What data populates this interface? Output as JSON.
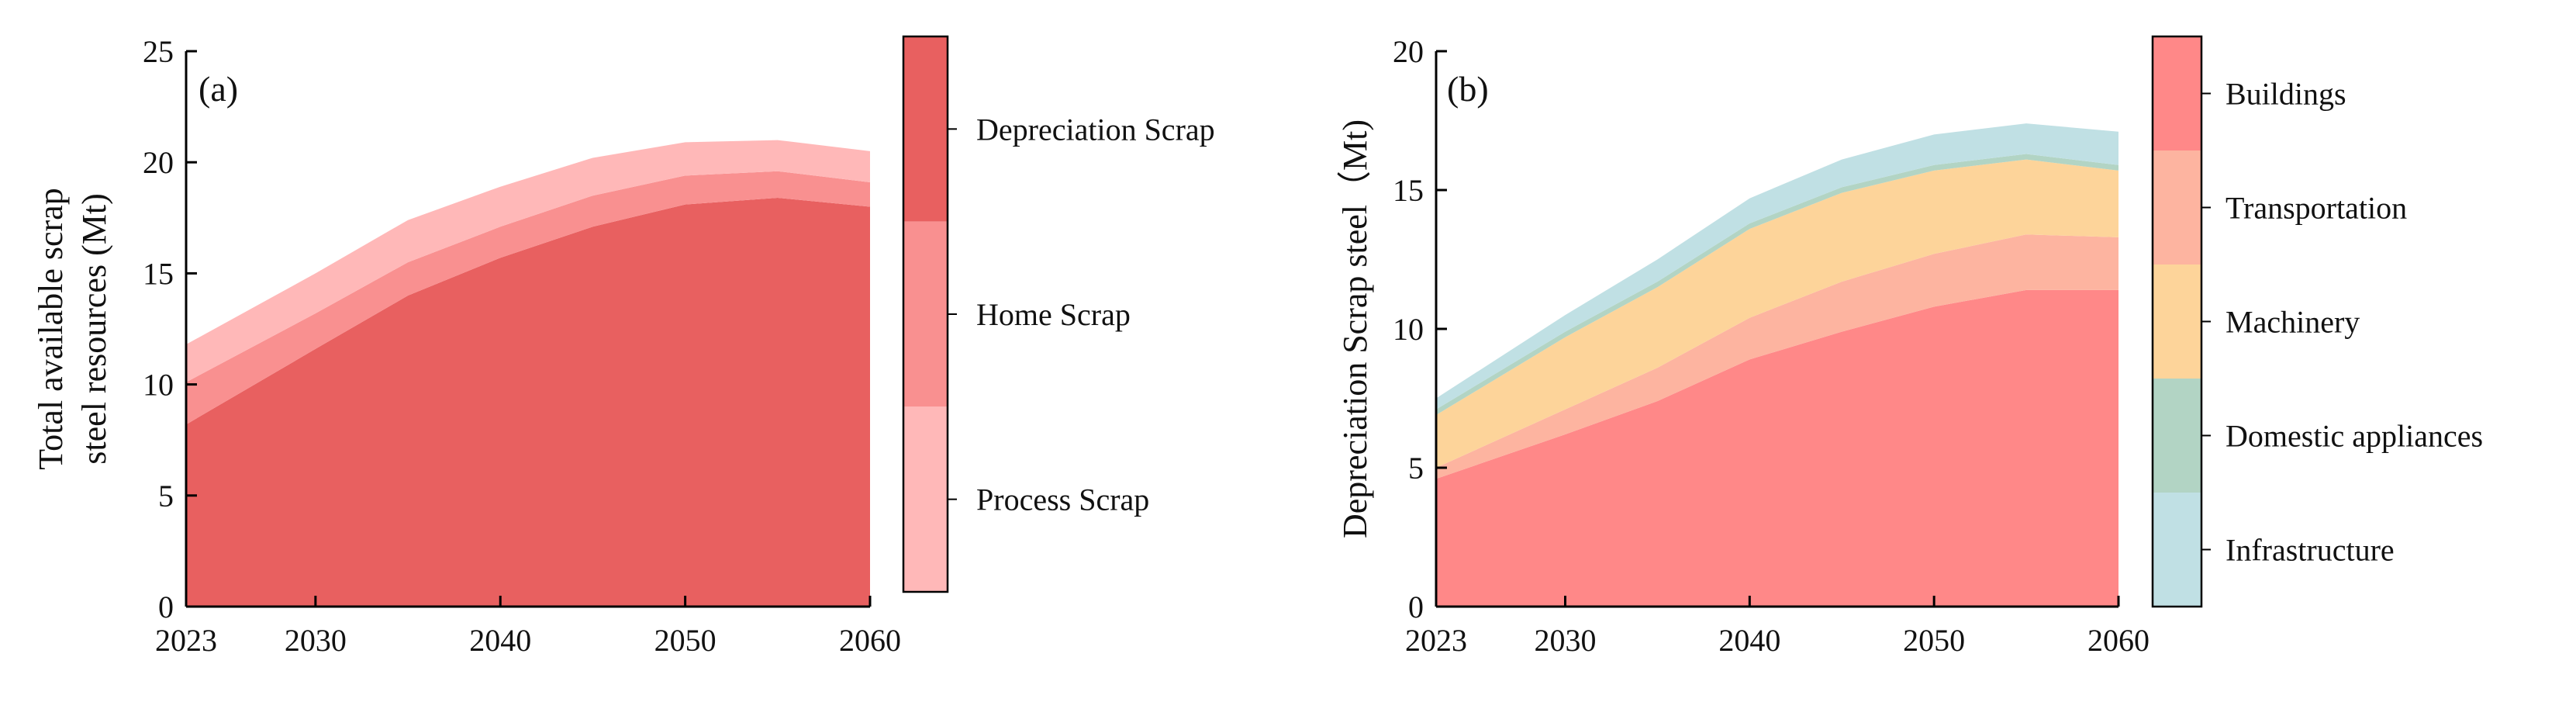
{
  "colors": {
    "depreciation": "#e86060",
    "home": "#f99090",
    "process": "#ffb8b8",
    "buildings": "#ff8888",
    "transportation": "#fdb4a0",
    "machinery": "#fdd49a",
    "domestic": "#b2d4c4",
    "infrastructure": "#c0e0e4"
  },
  "chart_data": [
    {
      "type": "area",
      "stacked": true,
      "panel_label": "(a)",
      "xlabel": "",
      "ylabel_lines": [
        "Total available scrap",
        "steel resources (Mt)"
      ],
      "x": [
        2023,
        2030,
        2035,
        2040,
        2045,
        2050,
        2055,
        2060
      ],
      "x_ticks": [
        "2023",
        "2030",
        "2040",
        "2050",
        "2060"
      ],
      "y_ticks": [
        "0",
        "5",
        "10",
        "15",
        "20",
        "25"
      ],
      "xlim": [
        2023,
        2060
      ],
      "ylim": [
        0,
        25
      ],
      "series": [
        {
          "name": "Depreciation Scrap",
          "key": "depreciation",
          "values": [
            8.2,
            11.6,
            14.0,
            15.7,
            17.1,
            18.1,
            18.4,
            18.0
          ]
        },
        {
          "name": "Home Scrap",
          "key": "home",
          "values": [
            1.9,
            1.6,
            1.5,
            1.4,
            1.4,
            1.3,
            1.2,
            1.1
          ]
        },
        {
          "name": "Process Scrap",
          "key": "process",
          "values": [
            1.7,
            1.8,
            1.9,
            1.8,
            1.7,
            1.5,
            1.4,
            1.4
          ]
        }
      ],
      "legend": [
        "Depreciation Scrap",
        "Home Scrap",
        "Process Scrap"
      ]
    },
    {
      "type": "area",
      "stacked": true,
      "panel_label": "(b)",
      "xlabel": "",
      "ylabel_lines": [
        "Depreciation Scrap steel（Mt)"
      ],
      "x": [
        2023,
        2030,
        2035,
        2040,
        2045,
        2050,
        2055,
        2060
      ],
      "x_ticks": [
        "2023",
        "2030",
        "2040",
        "2050",
        "2060"
      ],
      "y_ticks": [
        "0",
        "5",
        "10",
        "15",
        "20"
      ],
      "xlim": [
        2023,
        2060
      ],
      "ylim": [
        0,
        20
      ],
      "series": [
        {
          "name": "Buildings",
          "key": "buildings",
          "values": [
            4.6,
            6.2,
            7.4,
            8.9,
            9.9,
            10.8,
            11.4,
            11.4
          ]
        },
        {
          "name": "Transportation",
          "key": "transportation",
          "values": [
            0.4,
            0.9,
            1.2,
            1.5,
            1.8,
            1.9,
            2.0,
            1.9
          ]
        },
        {
          "name": "Machinery",
          "key": "machinery",
          "values": [
            1.9,
            2.6,
            2.9,
            3.2,
            3.2,
            3.0,
            2.7,
            2.4
          ]
        },
        {
          "name": "Domestic appliances",
          "key": "domestic",
          "values": [
            0.2,
            0.2,
            0.2,
            0.2,
            0.2,
            0.2,
            0.2,
            0.2
          ]
        },
        {
          "name": "Infrastructure",
          "key": "infrastructure",
          "values": [
            0.4,
            0.6,
            0.8,
            0.9,
            1.0,
            1.1,
            1.1,
            1.2
          ]
        }
      ],
      "legend": [
        "Buildings",
        "Transportation",
        "Machinery",
        "Domestic appliances",
        "Infrastructure"
      ]
    }
  ]
}
